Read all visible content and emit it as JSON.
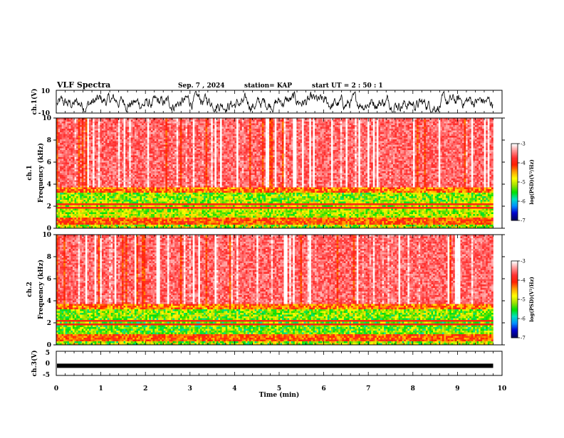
{
  "header": {
    "title": "VLF Spectra",
    "date": "Sep. 7  , 2024",
    "station": "station= KAP",
    "start": "start  UT  =   2  : 50 : 1"
  },
  "chart_data": [
    {
      "type": "line",
      "ylabel": "ch.1(V)",
      "ylim": [
        -10,
        10
      ],
      "yticks": [
        "10",
        "-10"
      ],
      "xlim": [
        0,
        10
      ]
    },
    {
      "type": "heatmap",
      "ylabel": "ch.1\nFrequency (kHz)",
      "ylim": [
        0,
        10
      ],
      "yticks": [
        "0",
        "2",
        "4",
        "6",
        "8",
        "10"
      ],
      "xlim": [
        0,
        10
      ],
      "data_extent_min": 9.8,
      "colorbar": {
        "label": "log(PSD)(V²/Hz)",
        "ticks": [
          "-3",
          "-4",
          "-5",
          "-6",
          "-7"
        ],
        "range": [
          -7,
          -3
        ]
      }
    },
    {
      "type": "heatmap",
      "ylabel": "ch.2\nFrequency (kHz)",
      "ylim": [
        0,
        10
      ],
      "yticks": [
        "0",
        "2",
        "4",
        "6",
        "8",
        "10"
      ],
      "xlim": [
        0,
        10
      ],
      "data_extent_min": 9.8,
      "colorbar": {
        "label": "log(PSD)(V²/Hz)",
        "ticks": [
          "-3",
          "-4",
          "-5",
          "-6",
          "-7"
        ],
        "range": [
          -7,
          -3
        ]
      }
    },
    {
      "type": "line",
      "ylabel": "ch.3(V)",
      "ylim": [
        -5,
        5
      ],
      "yticks": [
        "5",
        "0",
        "-5"
      ],
      "constant_value": -1,
      "xlim": [
        0,
        10
      ]
    }
  ],
  "xaxis": {
    "label": "Time (min)",
    "ticks": [
      "0",
      "1",
      "2",
      "3",
      "4",
      "5",
      "6",
      "7",
      "8",
      "9",
      "10"
    ]
  },
  "colors": {
    "palette": [
      "#000060",
      "#0000d0",
      "#0090ff",
      "#00e0c0",
      "#00e000",
      "#a0e000",
      "#ffff00",
      "#ffa000",
      "#ff2000",
      "#ff3030",
      "#ff9090",
      "#ffffff"
    ]
  }
}
